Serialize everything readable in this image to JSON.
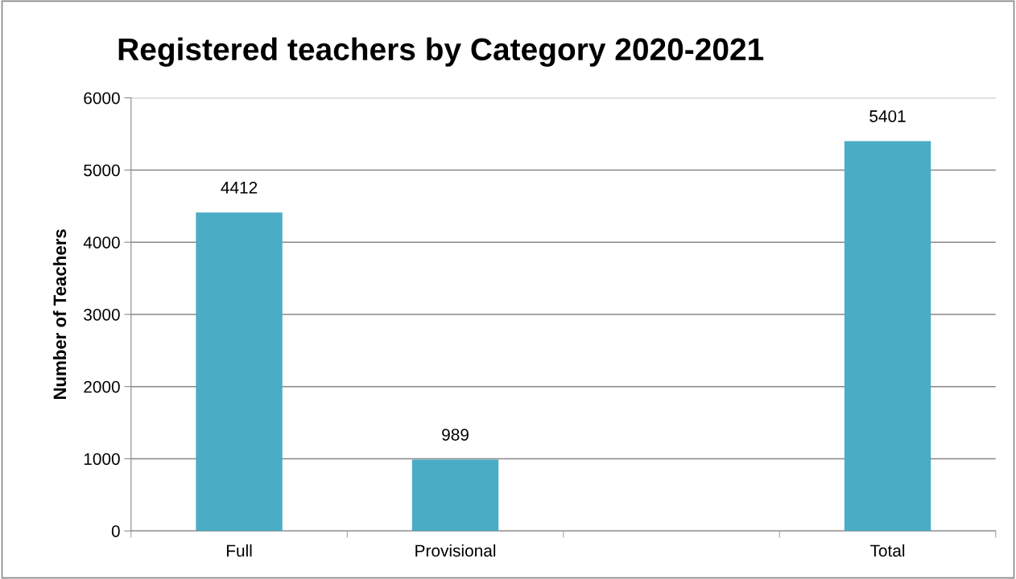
{
  "chart_data": {
    "type": "bar",
    "title": "Registered teachers by Category 2020-2021",
    "ylabel": "Number of Teachers",
    "categories": [
      "Full",
      "Provisional",
      null,
      "Total"
    ],
    "values": [
      4412,
      989,
      null,
      5401
    ],
    "color": "#4bacc6",
    "ylim": [
      0,
      6000
    ],
    "yticks": [
      0,
      1000,
      2000,
      3000,
      4000,
      5000,
      6000
    ],
    "grid": "y",
    "data_labels": true
  }
}
